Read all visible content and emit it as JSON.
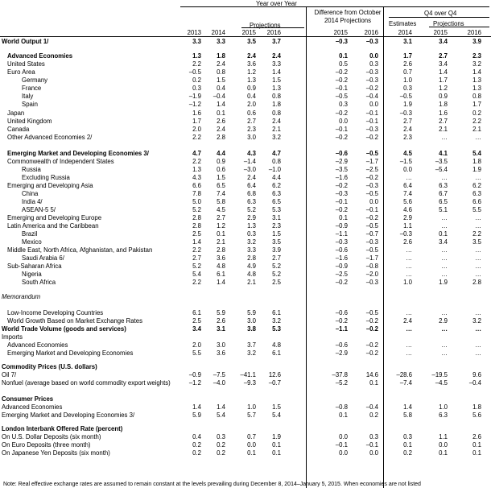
{
  "header": {
    "year_over_year": "Year over Year",
    "projections": "Projections",
    "difference_line1": "Difference from October",
    "difference_line2": "2014 Projections",
    "q4_over_q4": "Q4 over Q4",
    "estimates": "Estimates",
    "projections_q4": "Projections",
    "years": [
      "2013",
      "2014",
      "2015",
      "2016",
      "2015",
      "2016",
      "2014",
      "2015",
      "2016"
    ]
  },
  "rows": [
    {
      "label": "World Output 1/",
      "indent": 0,
      "style": "bold",
      "values": [
        "3.3",
        "3.3",
        "3.5",
        "3.7",
        "–0.3",
        "–0.3",
        "3.1",
        "3.4",
        "3.9"
      ]
    },
    {
      "label": "Advanced Economies",
      "indent": 1,
      "style": "bold",
      "values": [
        "1.3",
        "1.8",
        "2.4",
        "2.4",
        "0.1",
        "0.0",
        "1.7",
        "2.7",
        "2.3"
      ]
    },
    {
      "label": "United States",
      "indent": 1,
      "style": "",
      "values": [
        "2.2",
        "2.4",
        "3.6",
        "3.3",
        "0.5",
        "0.3",
        "2.6",
        "3.4",
        "3.2"
      ]
    },
    {
      "label": "Euro Area",
      "indent": 1,
      "style": "",
      "values": [
        "–0.5",
        "0.8",
        "1.2",
        "1.4",
        "–0.2",
        "–0.3",
        "0.7",
        "1.4",
        "1.4"
      ]
    },
    {
      "label": "Germany",
      "indent": 2,
      "style": "",
      "values": [
        "0.2",
        "1.5",
        "1.3",
        "1.5",
        "–0.2",
        "–0.3",
        "1.0",
        "1.7",
        "1.3"
      ]
    },
    {
      "label": "France",
      "indent": 2,
      "style": "",
      "values": [
        "0.3",
        "0.4",
        "0.9",
        "1.3",
        "–0.1",
        "–0.2",
        "0.3",
        "1.2",
        "1.3"
      ]
    },
    {
      "label": "Italy",
      "indent": 2,
      "style": "",
      "values": [
        "–1.9",
        "–0.4",
        "0.4",
        "0.8",
        "–0.5",
        "–0.4",
        "–0.5",
        "0.9",
        "0.8"
      ]
    },
    {
      "label": "Spain",
      "indent": 2,
      "style": "",
      "values": [
        "–1.2",
        "1.4",
        "2.0",
        "1.8",
        "0.3",
        "0.0",
        "1.9",
        "1.8",
        "1.7"
      ]
    },
    {
      "label": "Japan",
      "indent": 1,
      "style": "",
      "values": [
        "1.6",
        "0.1",
        "0.6",
        "0.8",
        "–0.2",
        "–0.1",
        "–0.3",
        "1.6",
        "0.2"
      ]
    },
    {
      "label": "United Kingdom",
      "indent": 1,
      "style": "",
      "values": [
        "1.7",
        "2.6",
        "2.7",
        "2.4",
        "0.0",
        "–0.1",
        "2.7",
        "2.7",
        "2.2"
      ]
    },
    {
      "label": "Canada",
      "indent": 1,
      "style": "",
      "values": [
        "2.0",
        "2.4",
        "2.3",
        "2.1",
        "–0.1",
        "–0.3",
        "2.4",
        "2.1",
        "2.1"
      ]
    },
    {
      "label": "Other Advanced Economies 2/",
      "indent": 1,
      "style": "",
      "values": [
        "2.2",
        "2.8",
        "3.0",
        "3.2",
        "–0.2",
        "–0.2",
        "2.3",
        "…",
        "…"
      ]
    },
    {
      "label": "Emerging Market and Developing Economies 3/",
      "indent": 1,
      "style": "bold",
      "values": [
        "4.7",
        "4.4",
        "4.3",
        "4.7",
        "–0.6",
        "–0.5",
        "4.5",
        "4.1",
        "5.4"
      ]
    },
    {
      "label": "Commonwealth of Independent States",
      "indent": 1,
      "style": "",
      "values": [
        "2.2",
        "0.9",
        "–1.4",
        "0.8",
        "–2.9",
        "–1.7",
        "–1.5",
        "–3.5",
        "1.8"
      ]
    },
    {
      "label": "Russia",
      "indent": 2,
      "style": "",
      "values": [
        "1.3",
        "0.6",
        "–3.0",
        "–1.0",
        "–3.5",
        "–2.5",
        "0.0",
        "–5.4",
        "1.9"
      ]
    },
    {
      "label": "Excluding Russia",
      "indent": 2,
      "style": "",
      "values": [
        "4.3",
        "1.5",
        "2.4",
        "4.4",
        "–1.6",
        "–0.2",
        "…",
        "…",
        "…"
      ]
    },
    {
      "label": "Emerging and Developing Asia",
      "indent": 1,
      "style": "",
      "values": [
        "6.6",
        "6.5",
        "6.4",
        "6.2",
        "–0.2",
        "–0.3",
        "6.4",
        "6.3",
        "6.2"
      ]
    },
    {
      "label": "China",
      "indent": 2,
      "style": "",
      "values": [
        "7.8",
        "7.4",
        "6.8",
        "6.3",
        "–0.3",
        "–0.5",
        "7.4",
        "6.7",
        "6.3"
      ]
    },
    {
      "label": "India 4/",
      "indent": 2,
      "style": "",
      "values": [
        "5.0",
        "5.8",
        "6.3",
        "6.5",
        "–0.1",
        "0.0",
        "5.6",
        "6.5",
        "6.6"
      ]
    },
    {
      "label": "ASEAN-5 5/",
      "indent": 2,
      "style": "",
      "values": [
        "5.2",
        "4.5",
        "5.2",
        "5.3",
        "–0.2",
        "–0.1",
        "4.6",
        "5.1",
        "5.5"
      ]
    },
    {
      "label": "Emerging and Developing Europe",
      "indent": 1,
      "style": "",
      "values": [
        "2.8",
        "2.7",
        "2.9",
        "3.1",
        "0.1",
        "–0.2",
        "2.9",
        "…",
        "…"
      ]
    },
    {
      "label": "Latin America and the Caribbean",
      "indent": 1,
      "style": "",
      "values": [
        "2.8",
        "1.2",
        "1.3",
        "2.3",
        "–0.9",
        "–0.5",
        "1.1",
        "…",
        "…"
      ]
    },
    {
      "label": "Brazil",
      "indent": 2,
      "style": "",
      "values": [
        "2.5",
        "0.1",
        "0.3",
        "1.5",
        "–1.1",
        "–0.7",
        "–0.3",
        "0.1",
        "2.2"
      ]
    },
    {
      "label": "Mexico",
      "indent": 2,
      "style": "",
      "values": [
        "1.4",
        "2.1",
        "3.2",
        "3.5",
        "–0.3",
        "–0.3",
        "2.6",
        "3.4",
        "3.5"
      ]
    },
    {
      "label": "Middle East, North Africa, Afghanistan, and Pakistan",
      "indent": 1,
      "style": "",
      "values": [
        "2.2",
        "2.8",
        "3.3",
        "3.9",
        "–0.6",
        "–0.5",
        "…",
        "…",
        "…"
      ]
    },
    {
      "label": "Saudi Arabia 6/",
      "indent": 2,
      "style": "",
      "values": [
        "2.7",
        "3.6",
        "2.8",
        "2.7",
        "–1.6",
        "–1.7",
        "…",
        "…",
        "…"
      ]
    },
    {
      "label": "Sub-Saharan Africa",
      "indent": 1,
      "style": "",
      "values": [
        "5.2",
        "4.8",
        "4.9",
        "5.2",
        "–0.9",
        "–0.8",
        "…",
        "…",
        "…"
      ]
    },
    {
      "label": "Nigeria",
      "indent": 2,
      "style": "",
      "values": [
        "5.4",
        "6.1",
        "4.8",
        "5.2",
        "–2.5",
        "–2.0",
        "…",
        "…",
        "…"
      ]
    },
    {
      "label": "South Africa",
      "indent": 2,
      "style": "",
      "values": [
        "2.2",
        "1.4",
        "2.1",
        "2.5",
        "–0.2",
        "–0.3",
        "1.0",
        "1.9",
        "2.8"
      ]
    },
    {
      "label": "Memorandum",
      "indent": 0,
      "style": "italic",
      "values": []
    },
    {
      "label": "Low-Income Developing Countries",
      "indent": 1,
      "style": "",
      "values": [
        "6.1",
        "5.9",
        "5.9",
        "6.1",
        "–0.6",
        "–0.5",
        "…",
        "…",
        "…"
      ]
    },
    {
      "label": "World Growth Based on Market Exchange Rates",
      "indent": 1,
      "style": "",
      "values": [
        "2.5",
        "2.6",
        "3.0",
        "3.2",
        "–0.2",
        "–0.2",
        "2.4",
        "2.9",
        "3.2"
      ]
    },
    {
      "label": "World Trade Volume (goods and services)",
      "indent": 0,
      "style": "bold",
      "values": [
        "3.4",
        "3.1",
        "3.8",
        "5.3",
        "–1.1",
        "–0.2",
        "…",
        "…",
        "…"
      ]
    },
    {
      "label": "Imports",
      "indent": 0,
      "style": "",
      "values": []
    },
    {
      "label": "Advanced Economies",
      "indent": 1,
      "style": "",
      "values": [
        "2.0",
        "3.0",
        "3.7",
        "4.8",
        "–0.6",
        "–0.2",
        "…",
        "…",
        "…"
      ]
    },
    {
      "label": "Emerging Market and Developing Economies",
      "indent": 1,
      "style": "",
      "values": [
        "5.5",
        "3.6",
        "3.2",
        "6.1",
        "–2.9",
        "–0.2",
        "…",
        "…",
        "…"
      ]
    },
    {
      "label": "Commodity Prices (U.S. dollars)",
      "indent": 0,
      "style": "bold",
      "values": []
    },
    {
      "label": "Oil 7/",
      "indent": 0,
      "style": "",
      "values": [
        "–0.9",
        "–7.5",
        "–41.1",
        "12.6",
        "–37.8",
        "14.6",
        "–28.6",
        "–19.5",
        "9.6"
      ]
    },
    {
      "label": "Nonfuel (average based on world commodity export weights)",
      "indent": 0,
      "style": "",
      "values": [
        "–1.2",
        "–4.0",
        "–9.3",
        "–0.7",
        "–5.2",
        "0.1",
        "–7.4",
        "–4.5",
        "–0.4"
      ]
    },
    {
      "label": "Consumer Prices",
      "indent": 0,
      "style": "bold",
      "values": []
    },
    {
      "label": "Advanced Economies",
      "indent": 0,
      "style": "",
      "values": [
        "1.4",
        "1.4",
        "1.0",
        "1.5",
        "–0.8",
        "–0.4",
        "1.4",
        "1.0",
        "1.8"
      ]
    },
    {
      "label": "Emerging Market and Developing Economies 3/",
      "indent": 0,
      "style": "",
      "values": [
        "5.9",
        "5.4",
        "5.7",
        "5.4",
        "0.1",
        "0.2",
        "5.8",
        "6.3",
        "5.6"
      ]
    },
    {
      "label": "London Interbank Offered Rate (percent)",
      "indent": 0,
      "style": "bold",
      "values": []
    },
    {
      "label": "On U.S. Dollar Deposits (six month)",
      "indent": 0,
      "style": "",
      "values": [
        "0.4",
        "0.3",
        "0.7",
        "1.9",
        "0.0",
        "0.3",
        "0.3",
        "1.1",
        "2.6"
      ]
    },
    {
      "label": "On Euro Deposits (three month)",
      "indent": 0,
      "style": "",
      "values": [
        "0.2",
        "0.2",
        "0.0",
        "0.1",
        "–0.1",
        "–0.1",
        "0.1",
        "0.0",
        "0.1"
      ]
    },
    {
      "label": "On Japanese Yen Deposits (six month)",
      "indent": 0,
      "style": "",
      "values": [
        "0.2",
        "0.2",
        "0.1",
        "0.1",
        "0.0",
        "0.0",
        "0.2",
        "0.1",
        "0.1"
      ]
    }
  ],
  "footnote": "Note: Real effective exchange rates are assumed to remain constant at the levels prevailing during December 8, 2014–January 5, 2015. When economies are not listed"
}
